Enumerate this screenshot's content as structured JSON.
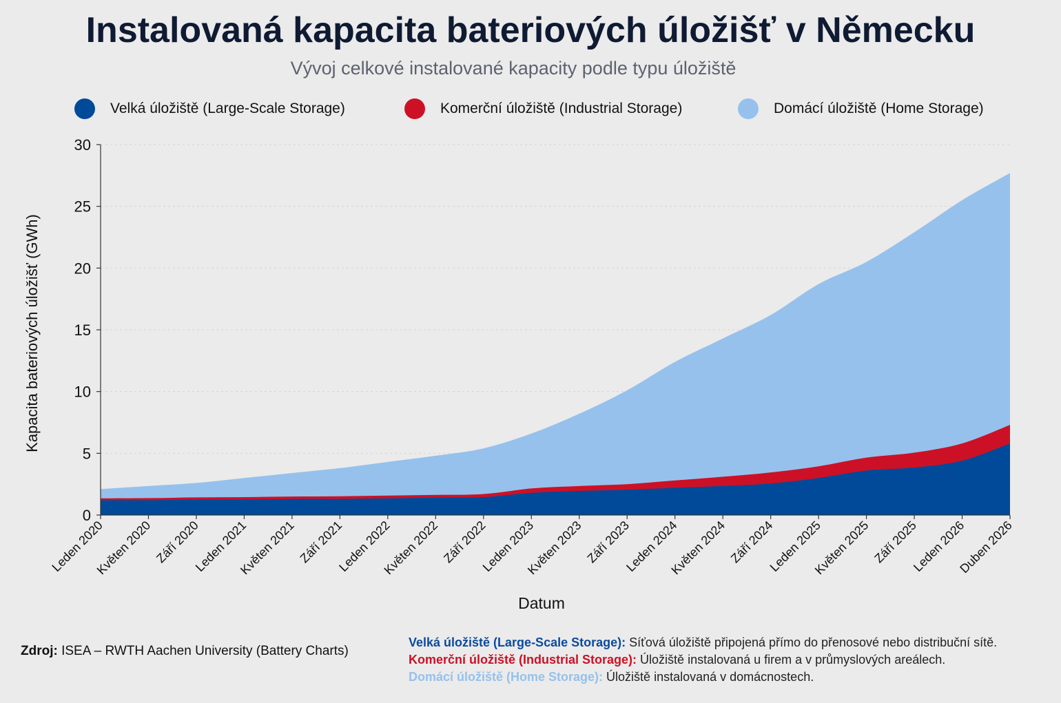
{
  "header": {
    "title": "Instalovaná kapacita bateriových úložišť v Německu",
    "subtitle": "Vývoj celkové instalované kapacity podle typu úložiště"
  },
  "legend": [
    {
      "label": "Velká úložiště (Large-Scale Storage)",
      "color": "#004a99"
    },
    {
      "label": "Komerční úložiště (Industrial Storage)",
      "color": "#cc1126"
    },
    {
      "label": "Domácí úložiště (Home Storage)",
      "color": "#96c1ec"
    }
  ],
  "chart_data": {
    "type": "area",
    "stacked": true,
    "title": "Instalovaná kapacita bateriových úložišť v Německu",
    "subtitle": "Vývoj celkové instalované kapacity podle typu úložiště",
    "xlabel": "Datum",
    "ylabel": "Kapacita bateriových úložišť (GWh)",
    "ylim": [
      0,
      30
    ],
    "yticks": [
      0,
      5,
      10,
      15,
      20,
      25,
      30
    ],
    "x": [
      "2020-01",
      "2020-05",
      "2020-09",
      "2021-01",
      "2021-05",
      "2021-09",
      "2022-01",
      "2022-05",
      "2022-09",
      "2023-01",
      "2023-05",
      "2023-09",
      "2024-01",
      "2024-05",
      "2024-09",
      "2025-01",
      "2025-05",
      "2025-09",
      "2026-01",
      "2026-04"
    ],
    "xtick_labels": [
      "Leden 2020",
      "Květen 2020",
      "Září 2020",
      "Leden 2021",
      "Květen 2021",
      "Září 2021",
      "Leden 2022",
      "Květen 2022",
      "Září 2022",
      "Leden 2023",
      "Květen 2023",
      "Září 2023",
      "Leden 2024",
      "Květen 2024",
      "Září 2024",
      "Leden 2025",
      "Květen 2025",
      "Září 2025",
      "Leden 2026",
      "Duben 2026"
    ],
    "series": [
      {
        "name": "Velká úložiště (Large-Scale Storage)",
        "color": "#004a99",
        "values": [
          1.2,
          1.2,
          1.25,
          1.25,
          1.3,
          1.3,
          1.35,
          1.4,
          1.45,
          1.8,
          1.95,
          2.05,
          2.2,
          2.35,
          2.55,
          3.0,
          3.6,
          3.85,
          4.4,
          5.8
        ]
      },
      {
        "name": "Komerční úložiště (Industrial Storage)",
        "color": "#cc1126",
        "values": [
          0.15,
          0.17,
          0.18,
          0.2,
          0.2,
          0.22,
          0.22,
          0.23,
          0.25,
          0.35,
          0.4,
          0.45,
          0.6,
          0.75,
          0.9,
          0.95,
          1.05,
          1.2,
          1.4,
          1.5
        ]
      },
      {
        "name": "Domácí úložiště (Home Storage)",
        "color": "#96c1ec",
        "values": [
          0.75,
          0.98,
          1.17,
          1.55,
          1.9,
          2.28,
          2.73,
          3.17,
          3.7,
          4.45,
          5.85,
          7.6,
          9.6,
          11.2,
          12.75,
          14.75,
          15.85,
          17.85,
          19.7,
          20.4
        ]
      }
    ],
    "grid": "horizontal dashed",
    "legend_position": "top"
  },
  "footer": {
    "source_label": "Zdroj:",
    "source_text": " ISEA – RWTH Aachen University (Battery Charts)",
    "notes": [
      {
        "term": "Velká úložiště (Large-Scale Storage):",
        "desc": " Síťová úložiště připojená přímo do přenosové nebo distribuční sítě.",
        "color": "#0b4a9e"
      },
      {
        "term": "Komerční úložiště (Industrial Storage):",
        "desc": " Úložiště instalovaná u firem a v průmyslových areálech.",
        "color": "#cc1126"
      },
      {
        "term": "Domácí úložiště (Home Storage):",
        "desc": " Úložiště instalovaná v domácnostech.",
        "color": "#96c1ec"
      }
    ]
  }
}
